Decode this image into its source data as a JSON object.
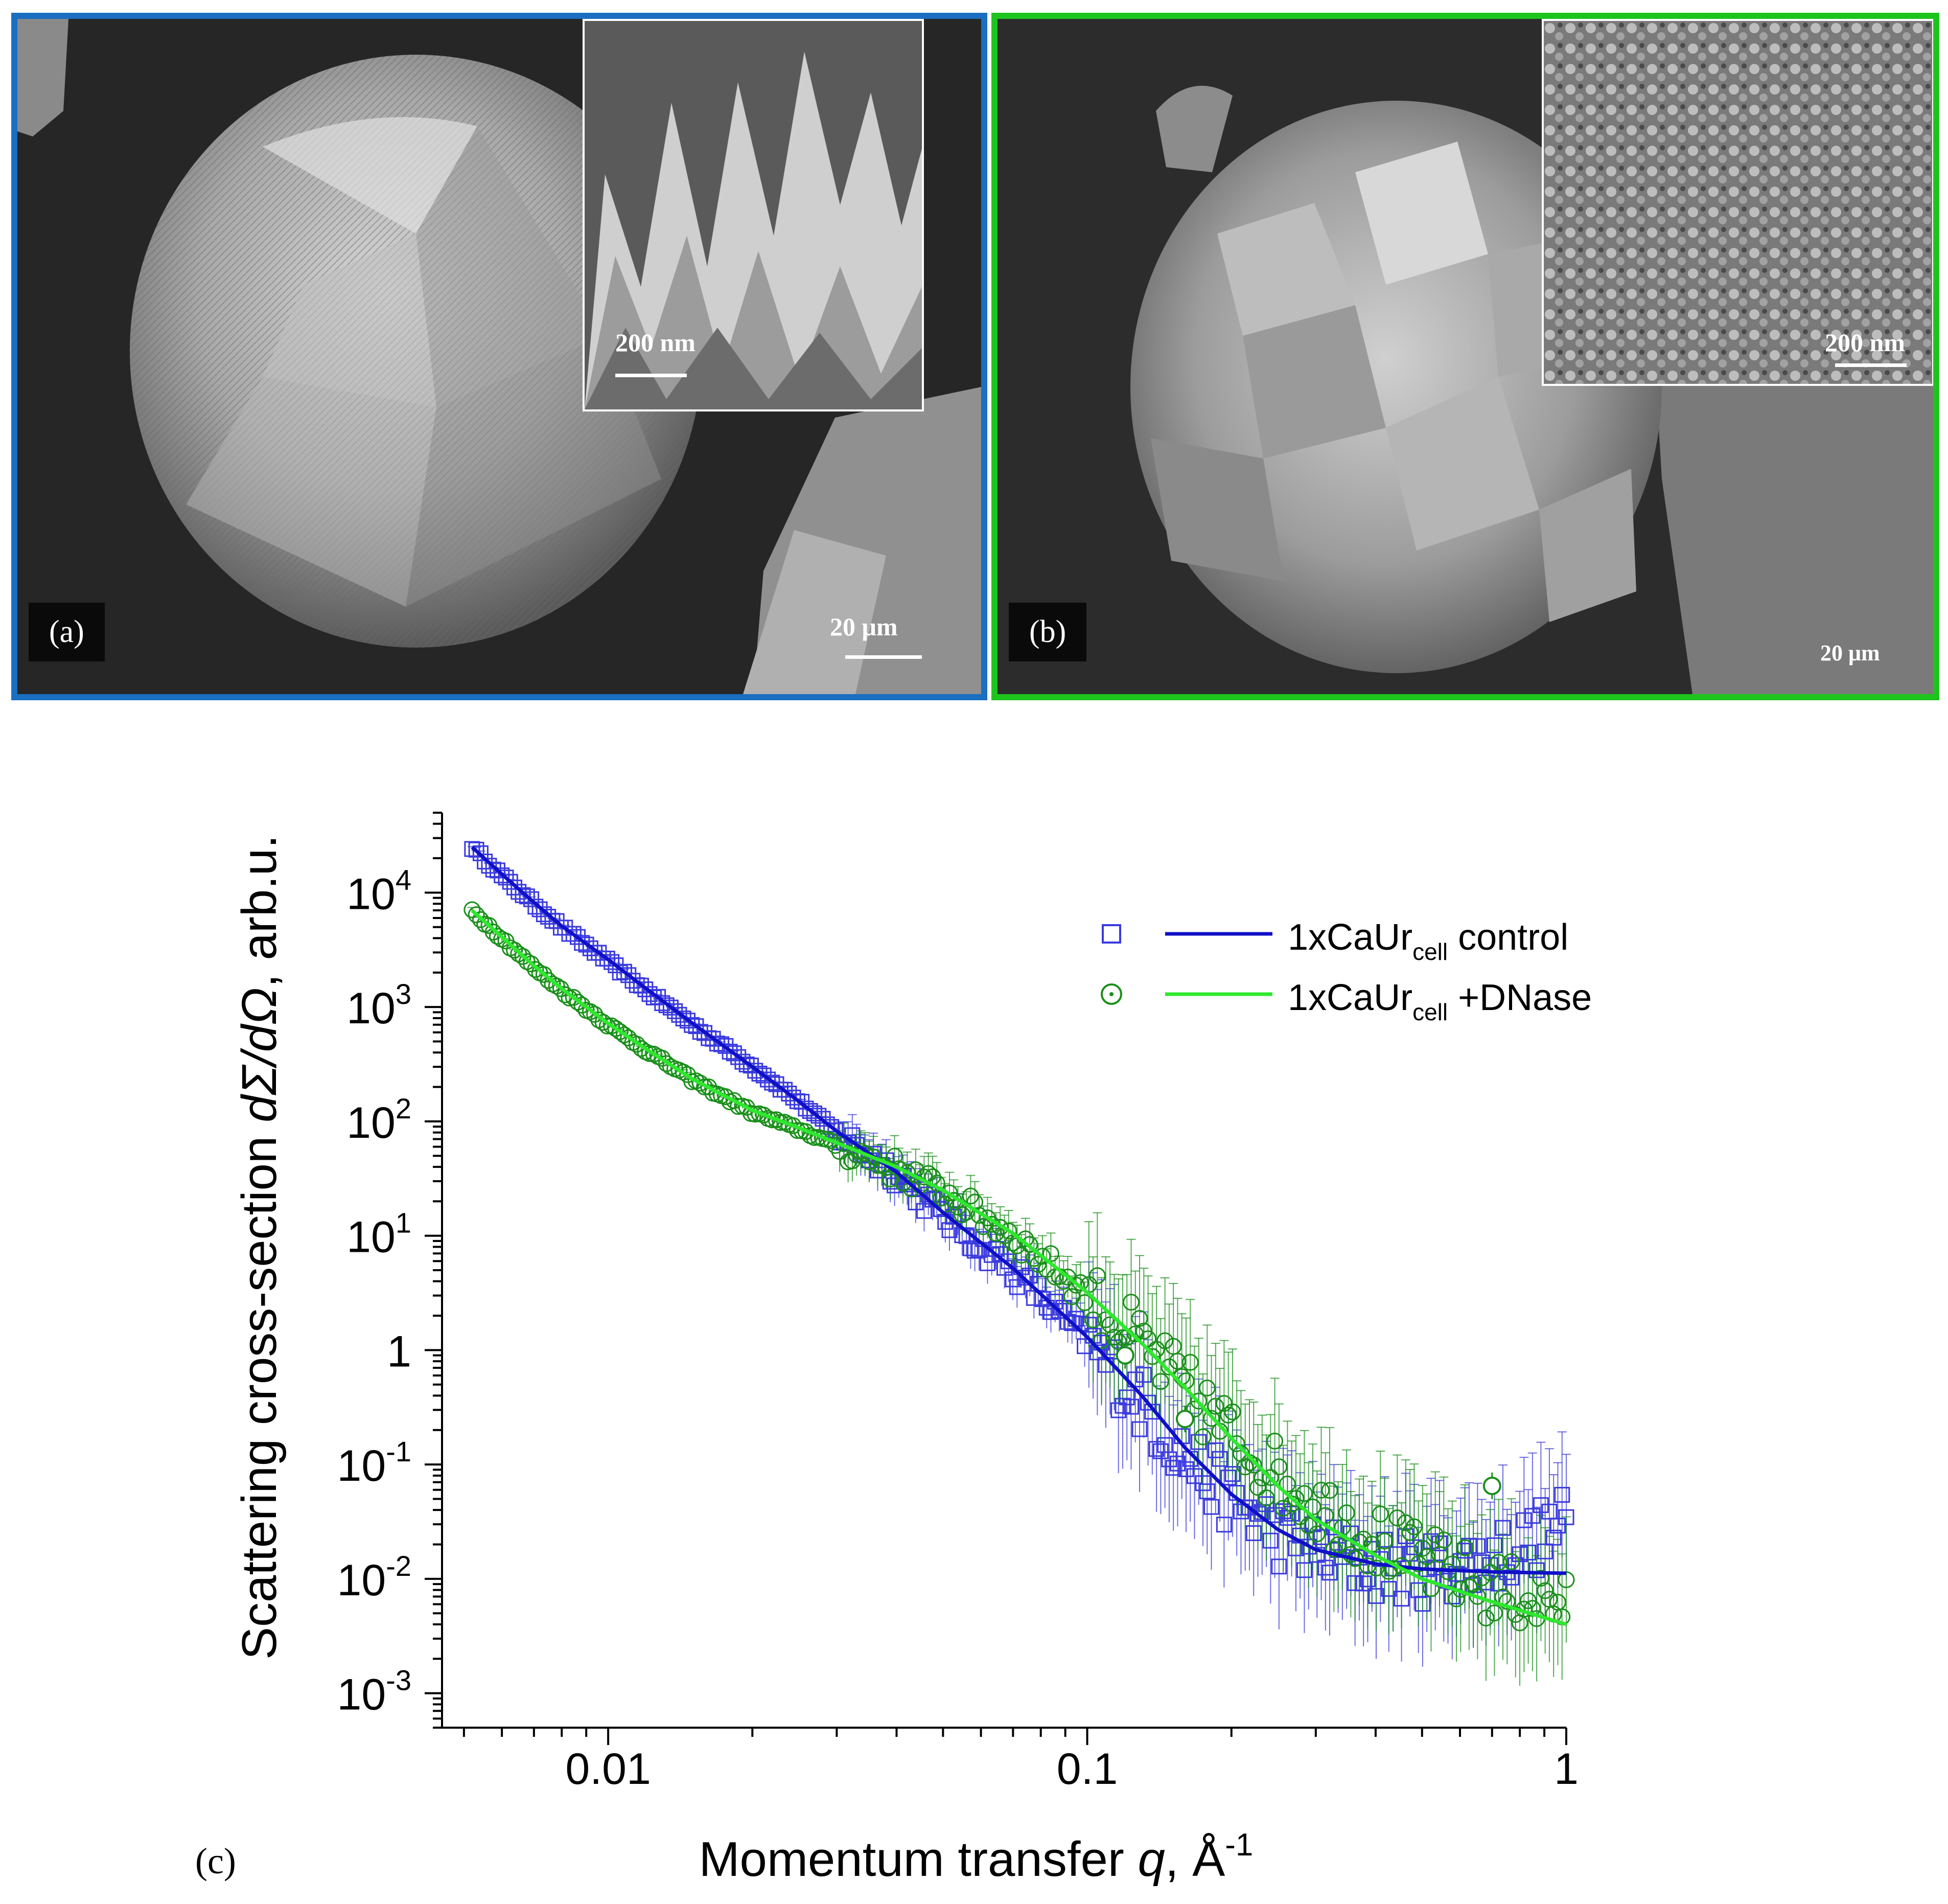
{
  "panels": {
    "a": {
      "tag": "(a)",
      "scale_main": "20 μm",
      "scale_inset": "200 nm",
      "frame_color": "#1a6fc0"
    },
    "b": {
      "tag": "(b)",
      "scale_main": "20 μm",
      "scale_inset": "200 nm",
      "frame_color": "#1ec41e"
    },
    "c": {
      "tag": "(c)"
    }
  },
  "chart_data": {
    "type": "scatter",
    "xlabel_parts": {
      "text": "Momentum transfer ",
      "var": "q",
      "sep": ", ",
      "unit": "Å",
      "sup": "-1"
    },
    "ylabel_parts": {
      "text": "Scattering cross-section ",
      "var": "dΣ/dΩ",
      "tail": ", arb.u."
    },
    "x_scale": "log",
    "y_scale": "log",
    "xlim": [
      0.0045,
      1.0
    ],
    "ylim": [
      0.0005,
      50000
    ],
    "x_ticks": [
      {
        "value": 0.01,
        "label": "0.01"
      },
      {
        "value": 0.1,
        "label": "0.1"
      },
      {
        "value": 1,
        "label": "1"
      }
    ],
    "y_ticks": [
      {
        "value": 0.001,
        "base": "10",
        "exp": "-3"
      },
      {
        "value": 0.01,
        "base": "10",
        "exp": "-2"
      },
      {
        "value": 0.1,
        "base": "10",
        "exp": "-1"
      },
      {
        "value": 1,
        "base": "1",
        "exp": ""
      },
      {
        "value": 10,
        "base": "10",
        "exp": "1"
      },
      {
        "value": 100,
        "base": "10",
        "exp": "2"
      },
      {
        "value": 1000,
        "base": "10",
        "exp": "3"
      },
      {
        "value": 10000,
        "base": "10",
        "exp": "4"
      }
    ],
    "legend_position": "top-right",
    "series": [
      {
        "name_main": "1xCaUr",
        "name_sub": "cell",
        "name_tail": " control",
        "marker": "square",
        "marker_color": "#3a3adf",
        "line_color": "#1010c8",
        "points": [
          [
            0.0052,
            25000
          ],
          [
            0.006,
            14000
          ],
          [
            0.007,
            8000
          ],
          [
            0.008,
            5000
          ],
          [
            0.01,
            2500
          ],
          [
            0.012,
            1400
          ],
          [
            0.015,
            700
          ],
          [
            0.02,
            300
          ],
          [
            0.025,
            150
          ],
          [
            0.03,
            80
          ],
          [
            0.04,
            35
          ],
          [
            0.05,
            15
          ],
          [
            0.07,
            5
          ],
          [
            0.1,
            1.2
          ],
          [
            0.13,
            0.35
          ],
          [
            0.16,
            0.12
          ],
          [
            0.2,
            0.05
          ],
          [
            0.25,
            0.025
          ],
          [
            0.3,
            0.017
          ],
          [
            0.4,
            0.013
          ],
          [
            0.5,
            0.012
          ],
          [
            0.7,
            0.015
          ],
          [
            1.0,
            0.03
          ]
        ],
        "fit": [
          [
            0.0052,
            25000
          ],
          [
            0.006,
            14500
          ],
          [
            0.007,
            8200
          ],
          [
            0.008,
            5100
          ],
          [
            0.01,
            2600
          ],
          [
            0.012,
            1450
          ],
          [
            0.015,
            720
          ],
          [
            0.02,
            300
          ],
          [
            0.025,
            150
          ],
          [
            0.03,
            82
          ],
          [
            0.04,
            36
          ],
          [
            0.05,
            16
          ],
          [
            0.07,
            5.2
          ],
          [
            0.1,
            1.3
          ],
          [
            0.13,
            0.4
          ],
          [
            0.16,
            0.14
          ],
          [
            0.2,
            0.055
          ],
          [
            0.25,
            0.027
          ],
          [
            0.3,
            0.018
          ],
          [
            0.4,
            0.0135
          ],
          [
            0.5,
            0.0122
          ],
          [
            0.7,
            0.0115
          ],
          [
            1.0,
            0.0112
          ]
        ]
      },
      {
        "name_main": "1xCaUr",
        "name_sub": "cell",
        "name_tail": " +DNase",
        "marker": "circle",
        "marker_color": "#1a8f1a",
        "line_color": "#2ee82e",
        "points": [
          [
            0.0052,
            7000
          ],
          [
            0.006,
            4000
          ],
          [
            0.007,
            2200
          ],
          [
            0.008,
            1400
          ],
          [
            0.01,
            700
          ],
          [
            0.012,
            420
          ],
          [
            0.015,
            230
          ],
          [
            0.02,
            120
          ],
          [
            0.025,
            85
          ],
          [
            0.03,
            62
          ],
          [
            0.04,
            38
          ],
          [
            0.05,
            24
          ],
          [
            0.07,
            10
          ],
          [
            0.1,
            3.0
          ],
          [
            0.13,
            1.1
          ],
          [
            0.16,
            0.45
          ],
          [
            0.2,
            0.18
          ],
          [
            0.25,
            0.08
          ],
          [
            0.3,
            0.045
          ],
          [
            0.4,
            0.022
          ],
          [
            0.5,
            0.014
          ],
          [
            0.7,
            0.008
          ],
          [
            1.0,
            0.006
          ]
        ],
        "fit": [
          [
            0.0052,
            7000
          ],
          [
            0.006,
            4100
          ],
          [
            0.007,
            2300
          ],
          [
            0.008,
            1450
          ],
          [
            0.01,
            720
          ],
          [
            0.012,
            430
          ],
          [
            0.015,
            235
          ],
          [
            0.02,
            125
          ],
          [
            0.025,
            88
          ],
          [
            0.03,
            65
          ],
          [
            0.04,
            40
          ],
          [
            0.05,
            25
          ],
          [
            0.07,
            10.5
          ],
          [
            0.1,
            3.2
          ],
          [
            0.13,
            1.15
          ],
          [
            0.16,
            0.47
          ],
          [
            0.2,
            0.17
          ],
          [
            0.25,
            0.065
          ],
          [
            0.3,
            0.033
          ],
          [
            0.4,
            0.016
          ],
          [
            0.5,
            0.01
          ],
          [
            0.7,
            0.0063
          ],
          [
            1.0,
            0.004
          ]
        ]
      }
    ],
    "outliers": [
      {
        "series": 1,
        "q": 0.12,
        "i": 0.9
      },
      {
        "series": 1,
        "q": 0.16,
        "i": 0.25
      },
      {
        "series": 1,
        "q": 0.7,
        "i": 0.065
      }
    ]
  }
}
